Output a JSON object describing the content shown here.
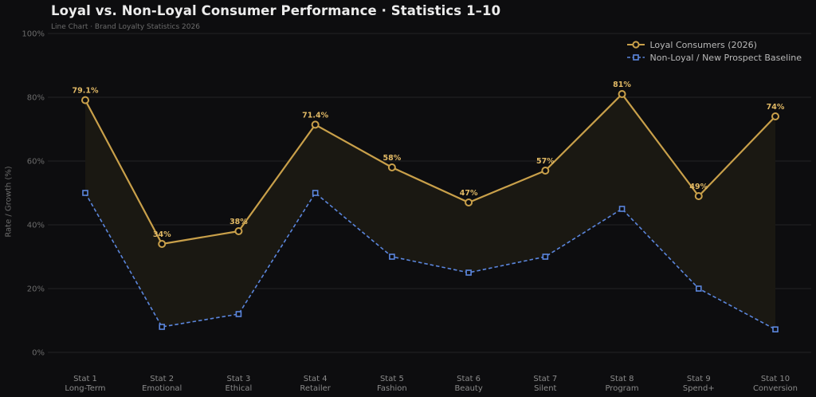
{
  "chart_data": {
    "type": "line",
    "title": "Loyal vs. Non-Loyal Consumer Performance  ·  Statistics 1–10",
    "subtitle": "Line Chart  ·  Brand Loyalty Statistics 2026",
    "xlabel": "",
    "ylabel": "Rate / Growth (%)",
    "ylim": [
      0,
      100
    ],
    "y_ticks": [
      "0%",
      "20%",
      "40%",
      "60%",
      "80%",
      "100%"
    ],
    "grid": true,
    "legend_position": "top-right",
    "categories": [
      [
        "Stat 1",
        "Long-Term"
      ],
      [
        "Stat 2",
        "Emotional"
      ],
      [
        "Stat 3",
        "Ethical"
      ],
      [
        "Stat 4",
        "Retailer"
      ],
      [
        "Stat 5",
        "Fashion"
      ],
      [
        "Stat 6",
        "Beauty"
      ],
      [
        "Stat 7",
        "Silent"
      ],
      [
        "Stat 8",
        "Program"
      ],
      [
        "Stat 9",
        "Spend+"
      ],
      [
        "Stat 10",
        "Conversion"
      ]
    ],
    "series": [
      {
        "name": "Loyal Consumers (2026)",
        "values": [
          79.1,
          34,
          38,
          71.4,
          58,
          47,
          57,
          81,
          49,
          74
        ],
        "labels": [
          "79.1%",
          "34%",
          "38%",
          "71.4%",
          "58%",
          "47%",
          "57%",
          "81%",
          "49%",
          "74%"
        ],
        "color": "#c9a04a",
        "marker": "circle",
        "line_style": "solid"
      },
      {
        "name": "Non-Loyal / New Prospect Baseline",
        "values": [
          50,
          8,
          12,
          50,
          30,
          25,
          30,
          45,
          20,
          7.2
        ],
        "color": "#5b86dd",
        "marker": "square",
        "line_style": "dashed"
      }
    ],
    "fill_between_color": "#1a1812",
    "background_color": "#0d0d0f",
    "grid_color": "#222225"
  }
}
